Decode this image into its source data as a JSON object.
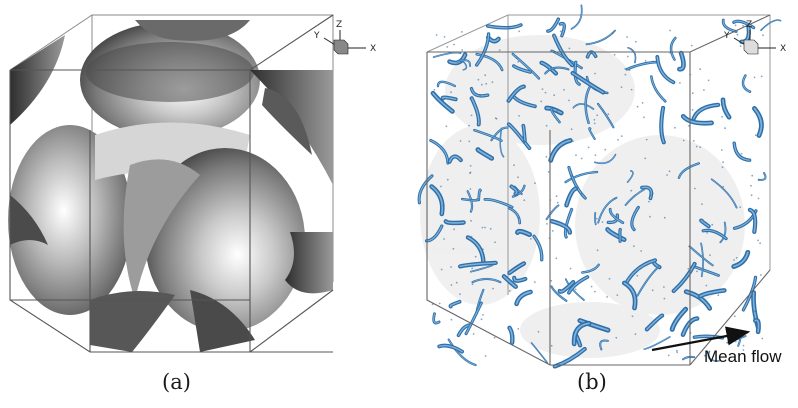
{
  "panel_a": {
    "caption": "(a)",
    "axes": {
      "z": "Z",
      "y": "Y",
      "x": "X"
    }
  },
  "panel_b": {
    "caption": "(b)",
    "axes": {
      "z": "Z",
      "y": "Y",
      "x": "X"
    },
    "annotation": "Mean flow"
  },
  "colors": {
    "box_edge": "#6e6e6e",
    "sphere_dark": "#3c3c3c",
    "sphere_light": "#ffffff",
    "vortex_blue": "#2f6fa8",
    "vortex_light": "#7fb3dd"
  },
  "icons": [
    "axis-triad-icon",
    "arrow-right-icon"
  ]
}
